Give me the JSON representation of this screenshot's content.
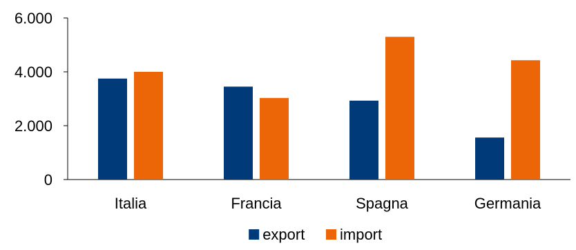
{
  "chart_data": {
    "type": "bar",
    "categories": [
      "Italia",
      "Francia",
      "Spagna",
      "Germania"
    ],
    "series": [
      {
        "name": "export",
        "color": "#003a78",
        "values": [
          3750,
          3450,
          2930,
          1560
        ]
      },
      {
        "name": "import",
        "color": "#ec6608",
        "values": [
          4000,
          3030,
          5300,
          4430
        ]
      }
    ],
    "ylim": [
      0,
      6000
    ],
    "yticks": [
      0,
      2000,
      4000,
      6000
    ],
    "ytick_labels": [
      "0",
      "2.000",
      "4.000",
      "6.000"
    ],
    "grid": false,
    "legend_position": "bottom",
    "title": "",
    "xlabel": "",
    "ylabel": ""
  }
}
